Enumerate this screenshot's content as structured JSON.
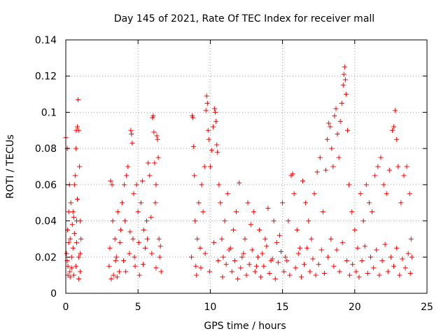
{
  "chart_data": {
    "type": "scatter",
    "title": "Day 145 of 2021, Rate Of TEC Index for receiver mall",
    "xlabel": "GPS time / hours",
    "ylabel": "ROTI / TECUs",
    "xlim": [
      0,
      25
    ],
    "ylim": [
      0,
      0.14
    ],
    "grid": true,
    "marker": "+",
    "color": "#ff0000",
    "x_ticks": [
      {
        "value": 0,
        "label": "0"
      },
      {
        "value": 5,
        "label": "5"
      },
      {
        "value": 10,
        "label": "10"
      },
      {
        "value": 15,
        "label": "15"
      },
      {
        "value": 20,
        "label": "20"
      },
      {
        "value": 25,
        "label": "25"
      }
    ],
    "y_ticks": [
      {
        "value": 0,
        "label": "0"
      },
      {
        "value": 0.02,
        "label": "0.02"
      },
      {
        "value": 0.04,
        "label": "0.04"
      },
      {
        "value": 0.06,
        "label": "0.06"
      },
      {
        "value": 0.08,
        "label": "0.08"
      },
      {
        "value": 0.1,
        "label": "0.1"
      },
      {
        "value": 0.12,
        "label": "0.12"
      },
      {
        "value": 0.14,
        "label": "0.14"
      }
    ],
    "series": [
      {
        "name": "ROTI",
        "points": [
          [
            0.0,
            0.086
          ],
          [
            0.05,
            0.022
          ],
          [
            0.1,
            0.08
          ],
          [
            0.12,
            0.035
          ],
          [
            0.15,
            0.015
          ],
          [
            0.2,
            0.045
          ],
          [
            0.25,
            0.06
          ],
          [
            0.28,
            0.012
          ],
          [
            0.3,
            0.03
          ],
          [
            0.35,
            0.05
          ],
          [
            0.4,
            0.02
          ],
          [
            0.45,
            0.038
          ],
          [
            0.5,
            0.045
          ],
          [
            0.55,
            0.01
          ],
          [
            0.6,
            0.06
          ],
          [
            0.65,
            0.065
          ],
          [
            0.7,
            0.08
          ],
          [
            0.72,
            0.09
          ],
          [
            0.75,
            0.04
          ],
          [
            0.8,
            0.092
          ],
          [
            0.85,
            0.107
          ],
          [
            0.88,
            0.09
          ],
          [
            0.9,
            0.02
          ],
          [
            0.95,
            0.07
          ],
          [
            1.0,
            0.012
          ],
          [
            1.05,
            0.03
          ],
          [
            0.1,
            0.018
          ],
          [
            0.3,
            0.009
          ],
          [
            0.5,
            0.025
          ],
          [
            0.7,
            0.015
          ],
          [
            0.9,
            0.008
          ],
          [
            1.0,
            0.022
          ],
          [
            0.2,
            0.028
          ],
          [
            0.4,
            0.014
          ],
          [
            0.6,
            0.033
          ],
          [
            0.8,
            0.052
          ],
          [
            1.0,
            0.04
          ],
          [
            0.15,
            0.01
          ],
          [
            0.55,
            0.042
          ],
          [
            0.75,
            0.028
          ],
          [
            3.0,
            0.015
          ],
          [
            3.05,
            0.025
          ],
          [
            3.1,
            0.062
          ],
          [
            3.2,
            0.06
          ],
          [
            3.25,
            0.04
          ],
          [
            3.3,
            0.01
          ],
          [
            3.4,
            0.03
          ],
          [
            3.5,
            0.02
          ],
          [
            3.6,
            0.045
          ],
          [
            3.7,
            0.012
          ],
          [
            3.8,
            0.035
          ],
          [
            3.9,
            0.05
          ],
          [
            4.0,
            0.018
          ],
          [
            4.05,
            0.06
          ],
          [
            4.1,
            0.04
          ],
          [
            4.2,
            0.065
          ],
          [
            4.3,
            0.07
          ],
          [
            4.4,
            0.022
          ],
          [
            4.5,
            0.09
          ],
          [
            4.55,
            0.088
          ],
          [
            4.6,
            0.083
          ],
          [
            4.65,
            0.03
          ],
          [
            4.7,
            0.055
          ],
          [
            4.8,
            0.015
          ],
          [
            4.9,
            0.06
          ],
          [
            5.0,
            0.045
          ],
          [
            5.1,
            0.01
          ],
          [
            5.2,
            0.05
          ],
          [
            5.3,
            0.062
          ],
          [
            5.4,
            0.035
          ],
          [
            5.5,
            0.025
          ],
          [
            5.6,
            0.04
          ],
          [
            5.7,
            0.072
          ],
          [
            5.8,
            0.065
          ],
          [
            5.9,
            0.042
          ],
          [
            6.0,
            0.097
          ],
          [
            6.05,
            0.098
          ],
          [
            6.1,
            0.089
          ],
          [
            6.15,
            0.072
          ],
          [
            6.2,
            0.05
          ],
          [
            6.25,
            0.06
          ],
          [
            6.3,
            0.087
          ],
          [
            6.35,
            0.085
          ],
          [
            6.4,
            0.075
          ],
          [
            6.45,
            0.03
          ],
          [
            6.5,
            0.02
          ],
          [
            6.6,
            0.012
          ],
          [
            3.15,
            0.008
          ],
          [
            3.45,
            0.018
          ],
          [
            3.75,
            0.028
          ],
          [
            4.15,
            0.012
          ],
          [
            4.45,
            0.034
          ],
          [
            4.75,
            0.02
          ],
          [
            5.05,
            0.028
          ],
          [
            5.35,
            0.016
          ],
          [
            5.65,
            0.03
          ],
          [
            5.95,
            0.022
          ],
          [
            6.25,
            0.014
          ],
          [
            6.55,
            0.026
          ],
          [
            3.55,
            0.009
          ],
          [
            8.7,
            0.02
          ],
          [
            8.75,
            0.098
          ],
          [
            8.8,
            0.097
          ],
          [
            8.85,
            0.081
          ],
          [
            8.9,
            0.065
          ],
          [
            8.95,
            0.04
          ],
          [
            9.0,
            0.015
          ],
          [
            9.1,
            0.03
          ],
          [
            9.2,
            0.05
          ],
          [
            9.3,
            0.025
          ],
          [
            9.4,
            0.06
          ],
          [
            9.5,
            0.045
          ],
          [
            9.6,
            0.07
          ],
          [
            9.7,
            0.101
          ],
          [
            9.75,
            0.109
          ],
          [
            9.8,
            0.105
          ],
          [
            9.85,
            0.09
          ],
          [
            9.9,
            0.085
          ],
          [
            10.0,
            0.07
          ],
          [
            10.1,
            0.079
          ],
          [
            10.2,
            0.092
          ],
          [
            10.3,
            0.102
          ],
          [
            10.35,
            0.1
          ],
          [
            10.4,
            0.095
          ],
          [
            10.45,
            0.082
          ],
          [
            10.5,
            0.078
          ],
          [
            10.6,
            0.06
          ],
          [
            10.7,
            0.05
          ],
          [
            10.8,
            0.03
          ],
          [
            10.9,
            0.02
          ],
          [
            11.0,
            0.04
          ],
          [
            11.2,
            0.055
          ],
          [
            11.4,
            0.025
          ],
          [
            11.6,
            0.035
          ],
          [
            11.8,
            0.045
          ],
          [
            12.0,
            0.061
          ],
          [
            12.2,
            0.02
          ],
          [
            12.4,
            0.03
          ],
          [
            12.6,
            0.05
          ],
          [
            12.8,
            0.038
          ],
          [
            13.0,
            0.045
          ],
          [
            13.2,
            0.015
          ],
          [
            13.4,
            0.035
          ],
          [
            13.6,
            0.022
          ],
          [
            13.8,
            0.03
          ],
          [
            14.0,
            0.047
          ],
          [
            14.2,
            0.018
          ],
          [
            14.4,
            0.04
          ],
          [
            14.6,
            0.028
          ],
          [
            14.8,
            0.032
          ],
          [
            15.0,
            0.05
          ],
          [
            15.2,
            0.02
          ],
          [
            15.4,
            0.04
          ],
          [
            15.6,
            0.065
          ],
          [
            15.7,
            0.066
          ],
          [
            15.8,
            0.055
          ],
          [
            16.0,
            0.035
          ],
          [
            16.2,
            0.025
          ],
          [
            16.4,
            0.062
          ],
          [
            16.6,
            0.05
          ],
          [
            16.8,
            0.04
          ],
          [
            17.0,
            0.03
          ],
          [
            17.2,
            0.055
          ],
          [
            17.4,
            0.067
          ],
          [
            17.6,
            0.075
          ],
          [
            17.8,
            0.045
          ],
          [
            18.0,
            0.068
          ],
          [
            18.1,
            0.085
          ],
          [
            18.2,
            0.094
          ],
          [
            18.3,
            0.092
          ],
          [
            18.4,
            0.08
          ],
          [
            18.5,
            0.07
          ],
          [
            18.6,
            0.098
          ],
          [
            18.7,
            0.102
          ],
          [
            18.8,
            0.088
          ],
          [
            18.9,
            0.075
          ],
          [
            19.0,
            0.095
          ],
          [
            19.1,
            0.105
          ],
          [
            19.2,
            0.115
          ],
          [
            19.25,
            0.121
          ],
          [
            19.3,
            0.125
          ],
          [
            19.35,
            0.118
          ],
          [
            19.4,
            0.11
          ],
          [
            19.5,
            0.09
          ],
          [
            19.6,
            0.06
          ],
          [
            19.8,
            0.045
          ],
          [
            20.0,
            0.035
          ],
          [
            20.2,
            0.025
          ],
          [
            20.4,
            0.055
          ],
          [
            20.6,
            0.04
          ],
          [
            20.8,
            0.06
          ],
          [
            21.0,
            0.05
          ],
          [
            21.2,
            0.045
          ],
          [
            21.4,
            0.065
          ],
          [
            21.6,
            0.07
          ],
          [
            21.8,
            0.075
          ],
          [
            22.0,
            0.06
          ],
          [
            22.2,
            0.055
          ],
          [
            22.4,
            0.068
          ],
          [
            22.6,
            0.09
          ],
          [
            22.7,
            0.092
          ],
          [
            22.8,
            0.101
          ],
          [
            22.9,
            0.085
          ],
          [
            23.0,
            0.07
          ],
          [
            23.2,
            0.05
          ],
          [
            23.4,
            0.065
          ],
          [
            23.6,
            0.07
          ],
          [
            23.8,
            0.055
          ],
          [
            23.9,
            0.03
          ],
          [
            23.95,
            0.02
          ],
          [
            9.05,
            0.01
          ],
          [
            9.35,
            0.014
          ],
          [
            9.65,
            0.022
          ],
          [
            9.95,
            0.012
          ],
          [
            10.25,
            0.028
          ],
          [
            10.55,
            0.018
          ],
          [
            10.85,
            0.009
          ],
          [
            11.1,
            0.016
          ],
          [
            11.3,
            0.024
          ],
          [
            11.5,
            0.012
          ],
          [
            11.7,
            0.018
          ],
          [
            11.9,
            0.008
          ],
          [
            12.1,
            0.014
          ],
          [
            12.3,
            0.022
          ],
          [
            12.5,
            0.01
          ],
          [
            12.7,
            0.016
          ],
          [
            12.9,
            0.024
          ],
          [
            13.1,
            0.012
          ],
          [
            13.3,
            0.02
          ],
          [
            13.5,
            0.009
          ],
          [
            13.7,
            0.015
          ],
          [
            13.9,
            0.026
          ],
          [
            14.1,
            0.011
          ],
          [
            14.3,
            0.019
          ],
          [
            14.5,
            0.008
          ],
          [
            14.7,
            0.017
          ],
          [
            14.9,
            0.023
          ],
          [
            15.1,
            0.012
          ],
          [
            15.3,
            0.018
          ],
          [
            15.5,
            0.01
          ],
          [
            15.9,
            0.014
          ],
          [
            16.1,
            0.022
          ],
          [
            16.3,
            0.009
          ],
          [
            16.5,
            0.016
          ],
          [
            16.7,
            0.025
          ],
          [
            16.9,
            0.012
          ],
          [
            17.1,
            0.019
          ],
          [
            17.3,
            0.01
          ],
          [
            17.5,
            0.016
          ],
          [
            17.7,
            0.024
          ],
          [
            17.9,
            0.011
          ],
          [
            18.15,
            0.02
          ],
          [
            18.35,
            0.03
          ],
          [
            18.55,
            0.015
          ],
          [
            18.75,
            0.024
          ],
          [
            18.95,
            0.012
          ],
          [
            19.15,
            0.028
          ],
          [
            19.45,
            0.018
          ],
          [
            19.65,
            0.01
          ],
          [
            19.85,
            0.016
          ],
          [
            20.1,
            0.012
          ],
          [
            20.3,
            0.009
          ],
          [
            20.5,
            0.018
          ],
          [
            20.7,
            0.026
          ],
          [
            20.9,
            0.011
          ],
          [
            21.1,
            0.02
          ],
          [
            21.3,
            0.014
          ],
          [
            21.5,
            0.024
          ],
          [
            21.7,
            0.01
          ],
          [
            21.9,
            0.018
          ],
          [
            22.1,
            0.027
          ],
          [
            22.3,
            0.012
          ],
          [
            22.5,
            0.02
          ],
          [
            22.7,
            0.015
          ],
          [
            22.9,
            0.025
          ],
          [
            23.1,
            0.01
          ],
          [
            23.3,
            0.019
          ],
          [
            23.5,
            0.014
          ],
          [
            23.7,
            0.022
          ],
          [
            23.85,
            0.011
          ]
        ]
      }
    ]
  }
}
